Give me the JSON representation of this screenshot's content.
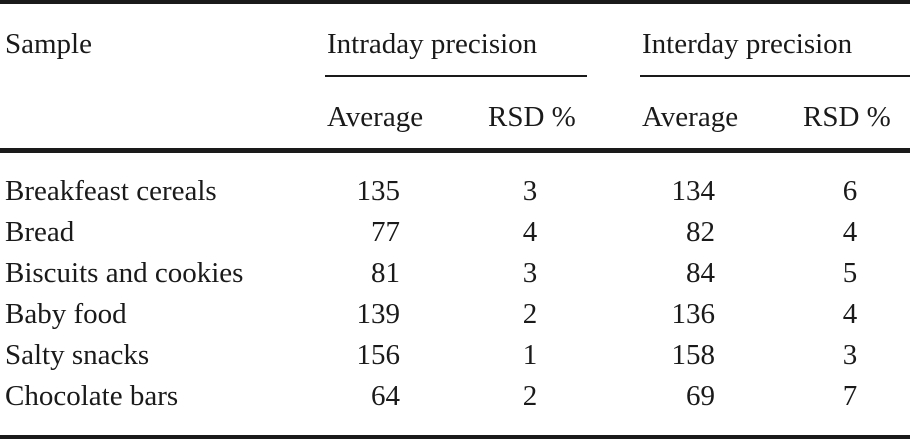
{
  "table": {
    "header": {
      "sample": "Sample",
      "intraday": "Intraday precision",
      "interday": "Interday precision",
      "average_1": "Average",
      "rsd_1": "RSD %",
      "average_2": "Average",
      "rsd_2": "RSD %"
    },
    "rows": [
      {
        "sample": "Breakfeast cereals",
        "intra_avg": "135",
        "intra_rsd": "3",
        "inter_avg": "134",
        "inter_rsd": "6"
      },
      {
        "sample": "Bread",
        "intra_avg": "77",
        "intra_rsd": "4",
        "inter_avg": "82",
        "inter_rsd": "4"
      },
      {
        "sample": "Biscuits and cookies",
        "intra_avg": "81",
        "intra_rsd": "3",
        "inter_avg": "84",
        "inter_rsd": "5"
      },
      {
        "sample": "Baby food",
        "intra_avg": "139",
        "intra_rsd": "2",
        "inter_avg": "136",
        "inter_rsd": "4"
      },
      {
        "sample": "Salty snacks",
        "intra_avg": "156",
        "intra_rsd": "1",
        "inter_avg": "158",
        "inter_rsd": "3"
      },
      {
        "sample": "Chocolate bars",
        "intra_avg": "64",
        "intra_rsd": "2",
        "inter_avg": "69",
        "inter_rsd": "7"
      }
    ]
  }
}
